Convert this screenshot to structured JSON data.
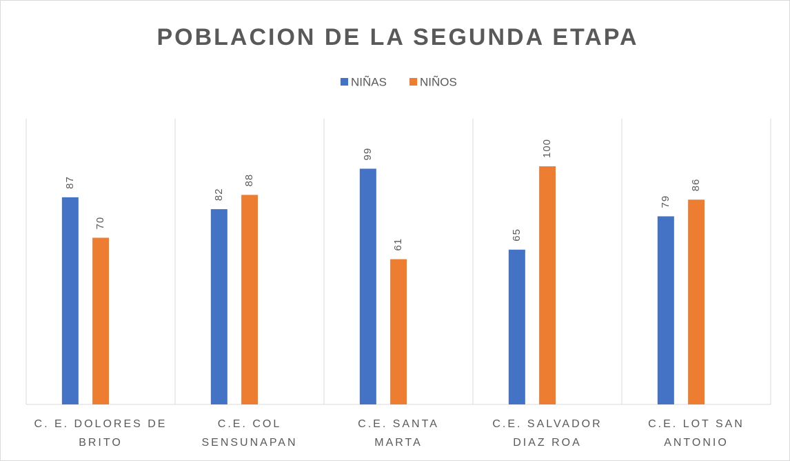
{
  "chart_data": {
    "type": "bar",
    "title": "POBLACION DE LA SEGUNDA ETAPA",
    "categories": [
      [
        "C. E. DOLORES DE",
        "BRITO"
      ],
      [
        "C.E. COL",
        "SENSUNAPAN"
      ],
      [
        "C.E. SANTA",
        "MARTA"
      ],
      [
        "C.E. SALVADOR",
        "DIAZ ROA"
      ],
      [
        "C.E. LOT SAN",
        "ANTONIO"
      ]
    ],
    "series": [
      {
        "name": "NIÑAS",
        "color": "#4472c4",
        "values": [
          87,
          82,
          99,
          65,
          79
        ]
      },
      {
        "name": "NIÑOS",
        "color": "#ed7d31",
        "values": [
          70,
          88,
          61,
          100,
          86
        ]
      }
    ],
    "ylim": [
      0,
      120
    ],
    "legend": "top"
  }
}
